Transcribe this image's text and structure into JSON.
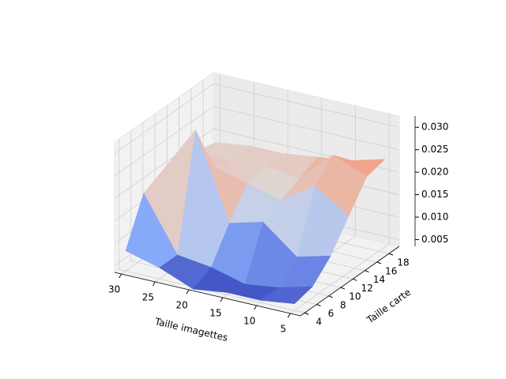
{
  "chart_data": {
    "type": "surface",
    "xlabel": "Taille imagettes",
    "ylabel": "Taille carte",
    "x": [
      30,
      25,
      20,
      15,
      10,
      5
    ],
    "y": [
      4,
      7,
      10,
      13,
      16,
      19
    ],
    "z": [
      [
        0.008,
        0.006,
        0.003,
        0.004,
        0.004,
        0.005
      ],
      [
        0.018,
        0.006,
        0.005,
        0.003,
        0.004,
        0.006
      ],
      [
        0.02,
        0.031,
        0.012,
        0.014,
        0.008,
        0.01
      ],
      [
        0.02,
        0.02,
        0.018,
        0.016,
        0.021,
        0.016
      ],
      [
        0.019,
        0.018,
        0.019,
        0.018,
        0.025,
        0.022
      ],
      [
        0.018,
        0.019,
        0.019,
        0.02,
        0.021,
        0.023
      ]
    ],
    "colormap": "coolwarm",
    "xlim": [
      31,
      3.5
    ],
    "xticks": [
      30,
      25,
      20,
      15,
      10,
      5
    ],
    "ylim": [
      3.3,
      19.7
    ],
    "yticks": [
      4,
      6,
      8,
      10,
      12,
      14,
      16,
      18
    ],
    "zlim": [
      0.0035,
      0.0325
    ],
    "zticks": [
      0.005,
      {
        "value": 0.01,
        "label": "0.010"
      },
      0.015,
      {
        "value": 0.02,
        "label": "0.020"
      },
      0.025,
      {
        "value": 0.03,
        "label": "0.030"
      }
    ],
    "grid": true
  }
}
